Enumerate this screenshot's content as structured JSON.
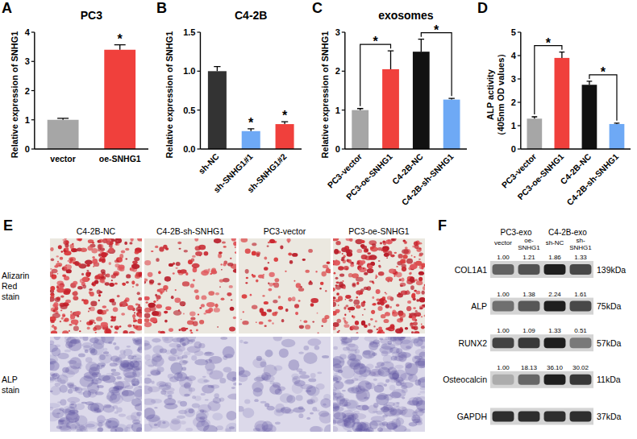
{
  "chart_data": [
    {
      "panel": "A",
      "type": "bar",
      "title": "PC3",
      "y_label": "Relative expression of SNHG1",
      "categories": [
        "vector",
        "oe-SNHG1"
      ],
      "values": [
        1.0,
        3.4
      ],
      "errors": [
        0.05,
        0.17
      ],
      "colors": [
        "#a6a6a6",
        "#f0403c"
      ],
      "ylim": [
        0,
        4
      ],
      "yticks": [
        0,
        1,
        2,
        3,
        4
      ],
      "annotations": [
        {
          "text": "*",
          "categories": [
            "oe-SNHG1"
          ]
        }
      ]
    },
    {
      "panel": "B",
      "type": "bar",
      "title": "C4-2B",
      "y_label": "Relative expression of SNHG1",
      "categories": [
        "sh-NC",
        "sh-SNHG1#1",
        "sh-SNHG1#2"
      ],
      "values": [
        1.0,
        0.23,
        0.32
      ],
      "errors": [
        0.06,
        0.03,
        0.03
      ],
      "colors": [
        "#333333",
        "#6ea9f5",
        "#f0403c"
      ],
      "ylim": [
        0,
        1.5
      ],
      "yticks": [
        {
          "value": 0,
          "label": "0.0"
        },
        {
          "value": 0.5,
          "label": "0.5"
        },
        {
          "value": 1,
          "label": "1.0"
        },
        {
          "value": 1.5,
          "label": "1.5"
        }
      ],
      "annotations": [
        {
          "text": "*",
          "categories": [
            "sh-SNHG1#1"
          ]
        },
        {
          "text": "*",
          "categories": [
            "sh-SNHG1#2"
          ]
        }
      ]
    },
    {
      "panel": "C",
      "type": "bar",
      "title": "exosomes",
      "y_label": "Relative expression of SNHG1",
      "categories": [
        "PC3-vector",
        "PC3-oe-SNHG1",
        "C4-2B-NC",
        "C4-2B-sh-SNHG1"
      ],
      "values": [
        1.0,
        2.05,
        2.5,
        1.27
      ],
      "errors": [
        0.04,
        0.47,
        0.32,
        0.03
      ],
      "colors": [
        "#a6a6a6",
        "#f0403c",
        "#111111",
        "#6ea9f5"
      ],
      "ylim": [
        0,
        3
      ],
      "yticks": [
        0,
        1,
        2,
        3
      ],
      "annotations": [
        {
          "text": "*",
          "categories": [
            "PC3-vector",
            "PC3-oe-SNHG1"
          ]
        },
        {
          "text": "*",
          "categories": [
            "C4-2B-NC",
            "C4-2B-sh-SNHG1"
          ]
        }
      ]
    },
    {
      "panel": "D",
      "type": "bar",
      "y_label": "ALP activity（405nm OD values）",
      "categories": [
        "PC3-vector",
        "PC3-oe-SNHG1",
        "C4-2B-NC",
        "C4-2B-sh-SNHG1"
      ],
      "values": [
        1.3,
        3.9,
        2.75,
        1.07
      ],
      "errors": [
        0.08,
        0.25,
        0.15,
        0.04
      ],
      "colors": [
        "#a6a6a6",
        "#f0403c",
        "#111111",
        "#6ea9f5"
      ],
      "ylim": [
        0,
        5
      ],
      "yticks": [
        0,
        1,
        2,
        3,
        4,
        5
      ],
      "annotations": [
        {
          "text": "*",
          "categories": [
            "PC3-vector",
            "PC3-oe-SNHG1"
          ]
        },
        {
          "text": "*",
          "categories": [
            "C4-2B-NC",
            "C4-2B-sh-SNHG1"
          ]
        }
      ]
    }
  ],
  "panel_e": {
    "panel": "E",
    "columns": [
      "C4-2B-NC",
      "C4-2B-sh-SNHG1",
      "PC3-vector",
      "PC3-oe-SNHG1"
    ],
    "rows": [
      "Alizarin Red stain",
      "ALP stain"
    ]
  },
  "panel_f": {
    "panel": "F",
    "groups": [
      "PC3-exo",
      "C4-2B-exo"
    ],
    "lanes": [
      "vector",
      "oe-SNHG1",
      "sh-NC",
      "sh-SNHG1"
    ],
    "proteins": [
      {
        "name": "COL1A1",
        "size": "139kDa",
        "values": [
          1.0,
          1.21,
          1.86,
          1.33
        ],
        "value_labels": [
          "1.00",
          "1.21",
          "1.86",
          "1.33"
        ]
      },
      {
        "name": "ALP",
        "size": "75kDa",
        "values": [
          1.0,
          1.38,
          2.24,
          1.61
        ],
        "value_labels": [
          "1.00",
          "1.38",
          "2.24",
          "1.61"
        ]
      },
      {
        "name": "RUNX2",
        "size": "57kDa",
        "values": [
          1.0,
          1.09,
          1.33,
          0.51
        ],
        "value_labels": [
          "1.00",
          "1.09",
          "1.33",
          "0.51"
        ]
      },
      {
        "name": "Osteocalcin",
        "size": "11kDa",
        "values": [
          1.0,
          18.13,
          36.1,
          30.02
        ],
        "value_labels": [
          "1.00",
          "18.13",
          "36.10",
          "30.02"
        ]
      },
      {
        "name": "GAPDH",
        "size": "37kDa"
      }
    ]
  }
}
